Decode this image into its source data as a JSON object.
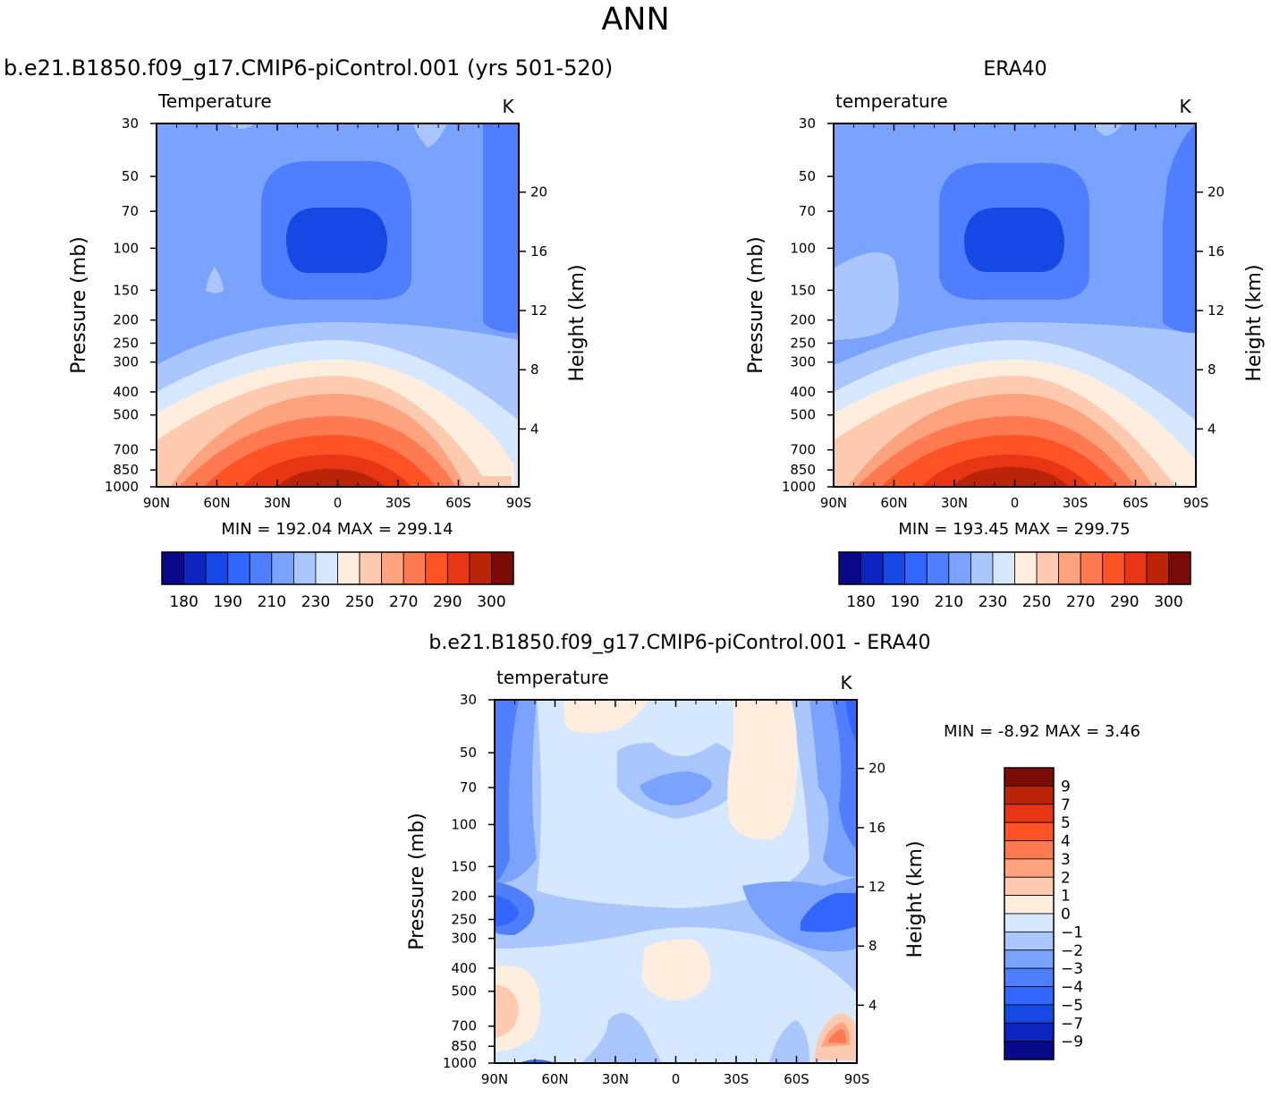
{
  "figure": {
    "title": "ANN",
    "panel_model_title": "b.e21.B1850.f09_g17.CMIP6-piControl.001 (yrs 501-520)",
    "panel_obs_title": "ERA40",
    "panel_diff_title": "b.e21.B1850.f09_g17.CMIP6-piControl.001 - ERA40"
  },
  "chart_data": [
    {
      "type": "heatmap",
      "panel": "model",
      "variable_label": "Temperature",
      "units": "K",
      "ylabel": "Pressure (mb)",
      "ylabel_right": "Height (km)",
      "x_ticks": [
        "90N",
        "60N",
        "30N",
        "0",
        "30S",
        "60S",
        "90S"
      ],
      "x_values": [
        90,
        60,
        30,
        0,
        -30,
        -60,
        -90
      ],
      "y_ticks": [
        30,
        50,
        70,
        100,
        150,
        200,
        250,
        300,
        400,
        500,
        700,
        850,
        1000
      ],
      "height_ticks": [
        4,
        8,
        12,
        16,
        20
      ],
      "stats": "MIN = 192.04 MAX = 299.14",
      "min": 192.04,
      "max": 299.14,
      "colorbar_labels": [
        "180",
        "190",
        "210",
        "230",
        "250",
        "270",
        "290",
        "300"
      ],
      "colors": [
        "#08088a",
        "#0c25c0",
        "#1648e6",
        "#3366ff",
        "#4f7fff",
        "#7aa3ff",
        "#a9c6ff",
        "#d6e8ff",
        "#ffeede",
        "#ffcbb0",
        "#ffa27e",
        "#ff7a50",
        "#ff5326",
        "#e83513",
        "#bb2409",
        "#7b0b06"
      ]
    },
    {
      "type": "heatmap",
      "panel": "obs",
      "variable_label": "temperature",
      "units": "K",
      "ylabel": "Pressure (mb)",
      "ylabel_right": "Height (km)",
      "x_ticks": [
        "90N",
        "60N",
        "30N",
        "0",
        "30S",
        "60S",
        "90S"
      ],
      "x_values": [
        90,
        60,
        30,
        0,
        -30,
        -60,
        -90
      ],
      "y_ticks": [
        30,
        50,
        70,
        100,
        150,
        200,
        250,
        300,
        400,
        500,
        700,
        850,
        1000
      ],
      "height_ticks": [
        4,
        8,
        12,
        16,
        20
      ],
      "stats": "MIN = 193.45 MAX = 299.75",
      "min": 193.45,
      "max": 299.75,
      "colorbar_labels": [
        "180",
        "190",
        "210",
        "230",
        "250",
        "270",
        "290",
        "300"
      ]
    },
    {
      "type": "heatmap",
      "panel": "difference",
      "variable_label": "temperature",
      "units": "K",
      "ylabel": "Pressure (mb)",
      "ylabel_right": "Height (km)",
      "x_ticks": [
        "90N",
        "60N",
        "30N",
        "0",
        "30S",
        "60S",
        "90S"
      ],
      "x_values": [
        90,
        60,
        30,
        0,
        -30,
        -60,
        -90
      ],
      "y_ticks": [
        30,
        50,
        70,
        100,
        150,
        200,
        250,
        300,
        400,
        500,
        700,
        850,
        1000
      ],
      "height_ticks": [
        4,
        8,
        12,
        16,
        20
      ],
      "stats": "MIN = -8.92 MAX = 3.46",
      "min": -8.92,
      "max": 3.46,
      "colorbar_labels": [
        "9",
        "7",
        "5",
        "4",
        "3",
        "2",
        "1",
        "0",
        "-1",
        "-2",
        "-3",
        "-4",
        "-5",
        "-7",
        "-9"
      ],
      "colors_top_to_bottom": [
        "#7b0b06",
        "#bb2409",
        "#e83513",
        "#ff5326",
        "#ff7a50",
        "#ffa27e",
        "#ffcbb0",
        "#ffeede",
        "#d6e8ff",
        "#a9c6ff",
        "#7aa3ff",
        "#4f7fff",
        "#3366ff",
        "#1648e6",
        "#0c25c0",
        "#08088a"
      ]
    }
  ]
}
